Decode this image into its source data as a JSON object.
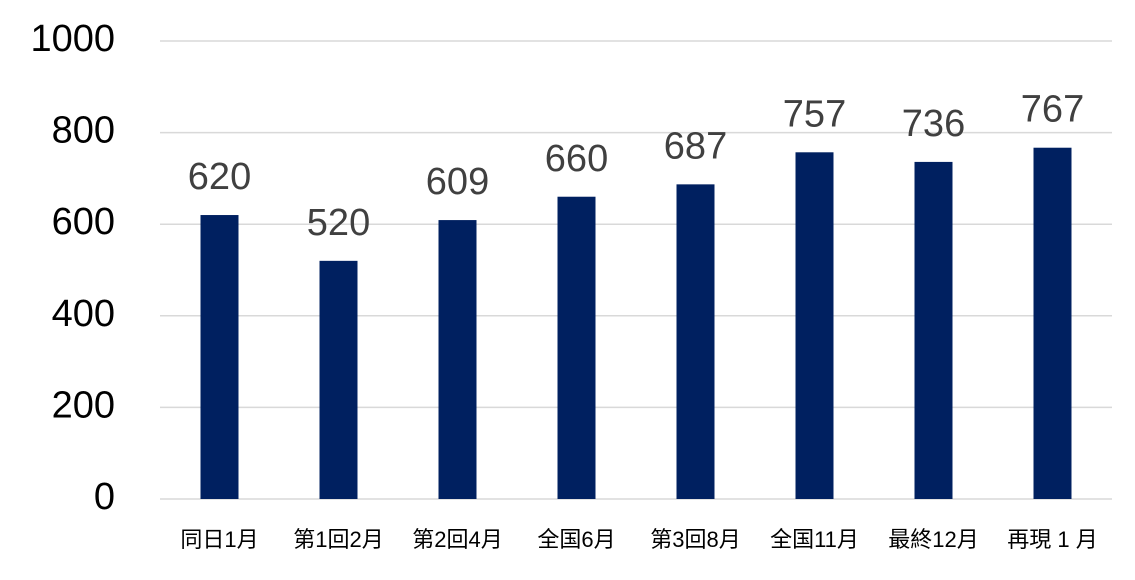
{
  "chart_data": {
    "type": "bar",
    "categories": [
      "同日1月",
      "第1回2月",
      "第2回4月",
      "全国6月",
      "第3回8月",
      "全国11月",
      "最終12月",
      "再現 1 月"
    ],
    "values": [
      620,
      520,
      609,
      660,
      687,
      757,
      736,
      767
    ],
    "color": "#002060",
    "ylim": [
      0,
      1000
    ],
    "yticks": [
      0,
      200,
      400,
      600,
      800,
      1000
    ],
    "grid": true
  }
}
